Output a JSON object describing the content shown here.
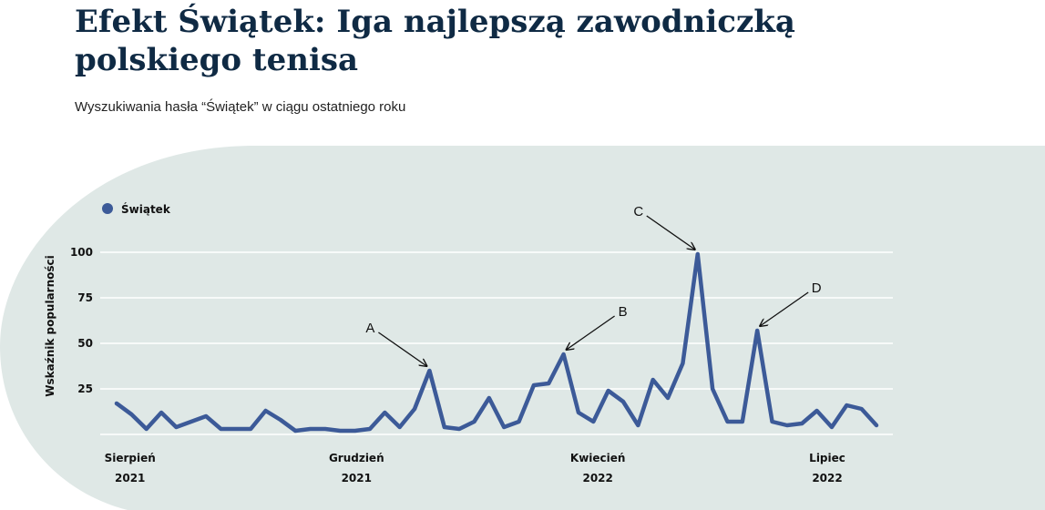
{
  "chart_data": {
    "type": "line",
    "title": [
      "Efekt Świątek: Iga najlepszą zawodniczką",
      "polskiego tenisa"
    ],
    "subtitle": "Wyszukiwania hasła “Świątek” w ciągu ostatniego roku",
    "y_label": "Wskaźnik popularności",
    "series": [
      {
        "name": "Świątek",
        "color": "#3c5a98",
        "values": [
          17,
          11,
          3,
          12,
          4,
          7,
          10,
          3,
          3,
          3,
          13,
          8,
          2,
          3,
          3,
          2,
          2,
          3,
          12,
          4,
          14,
          35,
          4,
          3,
          7,
          20,
          4,
          7,
          27,
          28,
          44,
          12,
          7,
          24,
          18,
          5,
          30,
          20,
          39,
          99,
          25,
          7,
          7,
          57,
          7,
          5,
          6,
          13,
          4,
          16,
          14,
          5
        ]
      }
    ],
    "xlim": [
      0,
      51
    ],
    "xticks": [
      {
        "value": 0.9,
        "label": [
          "Sierpień",
          "2021"
        ]
      },
      {
        "value": 16.1,
        "label": [
          "Grudzień",
          "2021"
        ]
      },
      {
        "value": 32.3,
        "label": [
          "Kwiecień",
          "2022"
        ]
      },
      {
        "value": 47.7,
        "label": [
          "Lipiec",
          "2022"
        ]
      }
    ],
    "ylim": [
      0,
      100
    ],
    "yticks": [
      25,
      50,
      75,
      100
    ],
    "grid": true,
    "annotations": [
      {
        "text": "A",
        "x": 21
      },
      {
        "text": "B",
        "x": 30
      },
      {
        "text": "C",
        "x": 39
      },
      {
        "text": "D",
        "x": 43
      }
    ]
  }
}
